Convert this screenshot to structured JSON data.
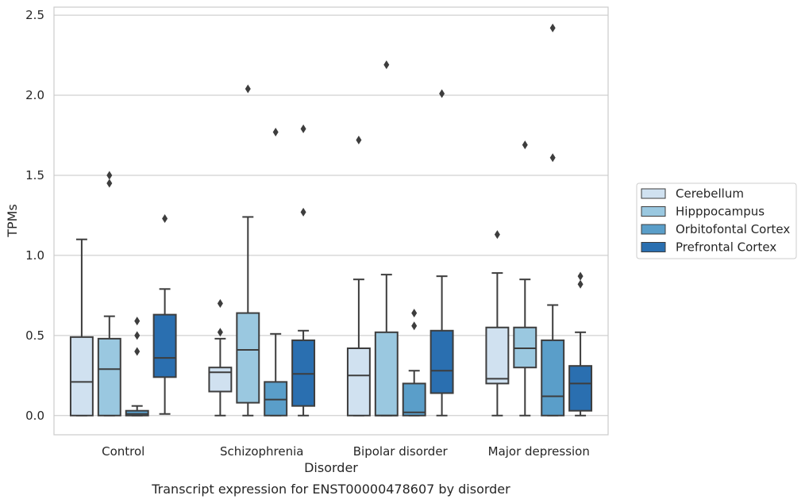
{
  "chart_data": {
    "type": "boxplot",
    "xlabel": "Disorder",
    "ylabel": "TPMs",
    "caption": "Transcript expression for ENST00000478607 by disorder",
    "ylim": [
      -0.12,
      2.55
    ],
    "yticks": [
      "0.0",
      "0.5",
      "1.0",
      "1.5",
      "2.0",
      "2.5"
    ],
    "grid": "horizontal",
    "legend_position": "right",
    "categories": [
      "Control",
      "Schizophrenia",
      "Bipolar disorder",
      "Major depression"
    ],
    "series": [
      {
        "name": "Cerebellum",
        "color": "#d0e1f0",
        "boxes": [
          {
            "whisker_low": 0,
            "q1": 0,
            "median": 0.21,
            "q3": 0.49,
            "whisker_high": 1.1,
            "outliers": []
          },
          {
            "whisker_low": 0,
            "q1": 0.15,
            "median": 0.27,
            "q3": 0.3,
            "whisker_high": 0.48,
            "outliers": [
              0.52,
              0.7
            ]
          },
          {
            "whisker_low": 0,
            "q1": 0,
            "median": 0.25,
            "q3": 0.42,
            "whisker_high": 0.85,
            "outliers": [
              1.72
            ]
          },
          {
            "whisker_low": 0,
            "q1": 0.2,
            "median": 0.23,
            "q3": 0.55,
            "whisker_high": 0.89,
            "outliers": [
              1.13
            ]
          }
        ]
      },
      {
        "name": "Hipppocampus",
        "color": "#9ac8e0",
        "boxes": [
          {
            "whisker_low": 0,
            "q1": 0,
            "median": 0.29,
            "q3": 0.48,
            "whisker_high": 0.62,
            "outliers": [
              1.45,
              1.5
            ]
          },
          {
            "whisker_low": 0,
            "q1": 0.08,
            "median": 0.41,
            "q3": 0.64,
            "whisker_high": 1.24,
            "outliers": [
              2.04
            ]
          },
          {
            "whisker_low": 0,
            "q1": 0,
            "median": 0,
            "q3": 0.52,
            "whisker_high": 0.88,
            "outliers": [
              2.19
            ]
          },
          {
            "whisker_low": 0,
            "q1": 0.3,
            "median": 0.42,
            "q3": 0.55,
            "whisker_high": 0.85,
            "outliers": [
              1.69
            ]
          }
        ]
      },
      {
        "name": "Orbitofontal Cortex",
        "color": "#5a9ec9",
        "boxes": [
          {
            "whisker_low": 0,
            "q1": 0,
            "median": 0.01,
            "q3": 0.03,
            "whisker_high": 0.06,
            "outliers": [
              0.4,
              0.5,
              0.59
            ]
          },
          {
            "whisker_low": 0,
            "q1": 0,
            "median": 0.1,
            "q3": 0.21,
            "whisker_high": 0.51,
            "outliers": [
              1.77
            ]
          },
          {
            "whisker_low": 0,
            "q1": 0,
            "median": 0.02,
            "q3": 0.2,
            "whisker_high": 0.28,
            "outliers": [
              0.56,
              0.64
            ]
          },
          {
            "whisker_low": 0,
            "q1": 0,
            "median": 0.12,
            "q3": 0.47,
            "whisker_high": 0.69,
            "outliers": [
              1.61,
              2.42
            ]
          }
        ]
      },
      {
        "name": "Prefrontal Cortex",
        "color": "#2a6fb0",
        "boxes": [
          {
            "whisker_low": 0.01,
            "q1": 0.24,
            "median": 0.36,
            "q3": 0.63,
            "whisker_high": 0.79,
            "outliers": [
              1.23
            ]
          },
          {
            "whisker_low": 0,
            "q1": 0.06,
            "median": 0.26,
            "q3": 0.47,
            "whisker_high": 0.53,
            "outliers": [
              1.27,
              1.79
            ]
          },
          {
            "whisker_low": 0,
            "q1": 0.14,
            "median": 0.28,
            "q3": 0.53,
            "whisker_high": 0.87,
            "outliers": [
              2.01
            ]
          },
          {
            "whisker_low": 0,
            "q1": 0.03,
            "median": 0.2,
            "q3": 0.31,
            "whisker_high": 0.52,
            "outliers": [
              0.82,
              0.87
            ]
          }
        ]
      }
    ]
  }
}
